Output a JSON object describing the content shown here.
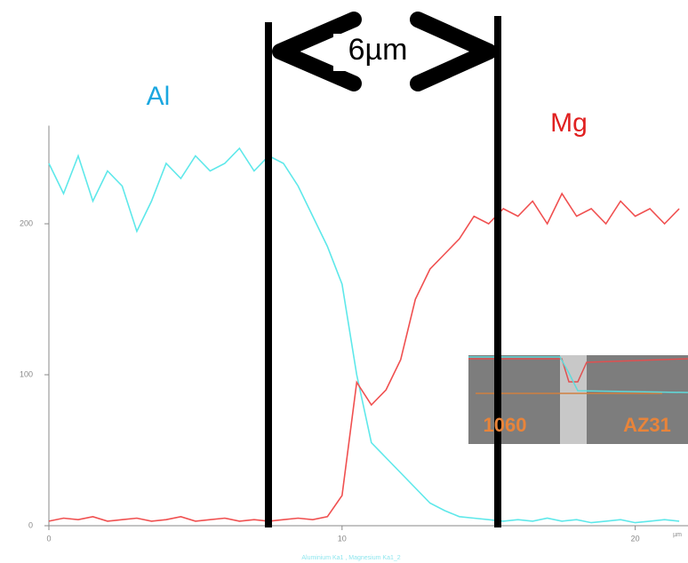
{
  "chart_data": {
    "type": "line",
    "x": [
      0,
      0.5,
      1,
      1.5,
      2,
      2.5,
      3,
      3.5,
      4,
      4.5,
      5,
      5.5,
      6,
      6.5,
      7,
      7.5,
      8,
      8.5,
      9,
      9.5,
      10,
      10.5,
      11,
      11.5,
      12,
      12.5,
      13,
      13.5,
      14,
      14.5,
      15,
      15.5,
      16,
      16.5,
      17,
      17.5,
      18,
      18.5,
      19,
      19.5,
      20,
      20.5,
      21,
      21.5
    ],
    "series": [
      {
        "name": "Al",
        "color": "#5ee8ea",
        "values": [
          240,
          220,
          245,
          215,
          235,
          225,
          195,
          215,
          240,
          230,
          245,
          235,
          240,
          250,
          235,
          245,
          240,
          225,
          205,
          185,
          160,
          100,
          55,
          45,
          35,
          25,
          15,
          10,
          6,
          5,
          4,
          3,
          4,
          3,
          5,
          3,
          4,
          2,
          3,
          4,
          2,
          3,
          4,
          3
        ]
      },
      {
        "name": "Mg",
        "color": "#f05050",
        "values": [
          3,
          5,
          4,
          6,
          3,
          4,
          5,
          3,
          4,
          6,
          3,
          4,
          5,
          3,
          4,
          3,
          4,
          5,
          4,
          6,
          20,
          95,
          80,
          90,
          110,
          150,
          170,
          180,
          190,
          205,
          200,
          210,
          205,
          215,
          200,
          220,
          205,
          210,
          200,
          215,
          205,
          210,
          200,
          210
        ]
      }
    ],
    "xlim": [
      0,
      21.8
    ],
    "xticks": [
      0,
      10,
      20
    ],
    "x_label": "µm",
    "ylim": [
      0,
      265
    ],
    "yticks": [
      0,
      100,
      200
    ],
    "legend_text": "Aluminium Ka1 , Magnesium Ka1_2",
    "annotation": "6µm",
    "inset_labels": [
      "1060",
      "AZ31"
    ]
  }
}
